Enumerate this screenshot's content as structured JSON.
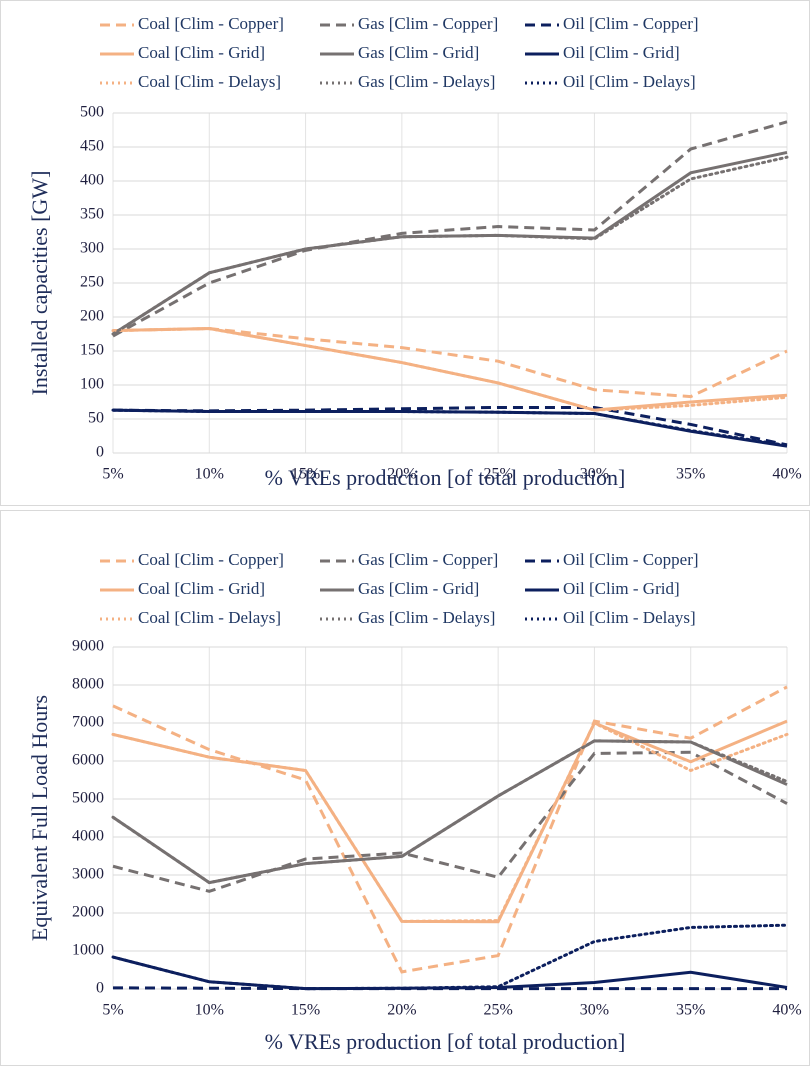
{
  "chart_data": [
    {
      "type": "line",
      "x_label": "% VREs production [of total production]",
      "y_label": "Installed capacities [GW]",
      "categories": [
        "5%",
        "10%",
        "15%",
        "20%",
        "25%",
        "30%",
        "35%",
        "40%"
      ],
      "ylim": [
        0,
        500
      ],
      "yticks": [
        0,
        50,
        100,
        150,
        200,
        250,
        300,
        350,
        400,
        450,
        500
      ],
      "grid": true,
      "series": [
        {
          "name": "Coal [Clim - Copper]",
          "color": "#f4b183",
          "style": "dashed",
          "values": [
            180,
            183,
            168,
            155,
            135,
            93,
            83,
            150
          ]
        },
        {
          "name": "Gas [Clim - Copper]",
          "color": "#767171",
          "style": "dashed",
          "values": [
            172,
            250,
            298,
            323,
            333,
            328,
            447,
            487
          ]
        },
        {
          "name": "Oil [Clim - Copper]",
          "color": "#0c1f5e",
          "style": "dashed",
          "values": [
            63,
            62,
            63,
            65,
            67,
            67,
            42,
            12
          ]
        },
        {
          "name": "Coal [Clim - Grid]",
          "color": "#f4b183",
          "style": "solid",
          "values": [
            180,
            183,
            158,
            133,
            103,
            63,
            75,
            85
          ]
        },
        {
          "name": "Gas [Clim - Grid]",
          "color": "#767171",
          "style": "solid",
          "values": [
            175,
            265,
            300,
            318,
            320,
            316,
            412,
            442
          ]
        },
        {
          "name": "Oil [Clim - Grid]",
          "color": "#0c1f5e",
          "style": "solid",
          "values": [
            63,
            61,
            61,
            61,
            60,
            58,
            32,
            10
          ]
        },
        {
          "name": "Coal [Clim - Delays]",
          "color": "#f4b183",
          "style": "dotted",
          "values": [
            180,
            183,
            158,
            133,
            103,
            63,
            70,
            82
          ]
        },
        {
          "name": "Gas [Clim - Delays]",
          "color": "#767171",
          "style": "dotted",
          "values": [
            175,
            265,
            300,
            318,
            320,
            315,
            403,
            435
          ]
        },
        {
          "name": "Oil [Clim - Delays]",
          "color": "#0c1f5e",
          "style": "dotted",
          "values": [
            63,
            61,
            61,
            61,
            60,
            58,
            33,
            11
          ]
        }
      ]
    },
    {
      "type": "line",
      "x_label": "% VREs production [of total production]",
      "y_label": "Equivalent Full Load Hours",
      "categories": [
        "5%",
        "10%",
        "15%",
        "20%",
        "25%",
        "30%",
        "35%",
        "40%"
      ],
      "ylim": [
        0,
        9000
      ],
      "yticks": [
        0,
        1000,
        2000,
        3000,
        4000,
        5000,
        6000,
        7000,
        8000,
        9000
      ],
      "grid": true,
      "series": [
        {
          "name": "Coal [Clim - Copper]",
          "color": "#f4b183",
          "style": "dashed",
          "values": [
            7450,
            6300,
            5500,
            450,
            880,
            7050,
            6600,
            7950
          ]
        },
        {
          "name": "Gas [Clim - Copper]",
          "color": "#767171",
          "style": "dashed",
          "values": [
            3230,
            2570,
            3420,
            3580,
            2940,
            6200,
            6230,
            4880
          ]
        },
        {
          "name": "Oil [Clim - Copper]",
          "color": "#0c1f5e",
          "style": "dashed",
          "values": [
            30,
            20,
            10,
            10,
            10,
            10,
            10,
            10
          ]
        },
        {
          "name": "Coal [Clim - Grid]",
          "color": "#f4b183",
          "style": "solid",
          "values": [
            6700,
            6100,
            5750,
            1780,
            1770,
            7000,
            5980,
            7050
          ]
        },
        {
          "name": "Gas [Clim - Grid]",
          "color": "#767171",
          "style": "solid",
          "values": [
            4520,
            2800,
            3300,
            3490,
            5080,
            6530,
            6500,
            5380
          ]
        },
        {
          "name": "Oil [Clim - Grid]",
          "color": "#0c1f5e",
          "style": "solid",
          "values": [
            840,
            190,
            10,
            20,
            40,
            170,
            440,
            40
          ]
        },
        {
          "name": "Coal [Clim - Delays]",
          "color": "#f4b183",
          "style": "dotted",
          "values": [
            6700,
            6100,
            5750,
            1780,
            1800,
            7000,
            5750,
            6700
          ]
        },
        {
          "name": "Gas [Clim - Delays]",
          "color": "#767171",
          "style": "dotted",
          "values": [
            4520,
            2800,
            3300,
            3490,
            5080,
            6530,
            6500,
            5460
          ]
        },
        {
          "name": "Oil [Clim - Delays]",
          "color": "#0c1f5e",
          "style": "dotted",
          "values": [
            840,
            190,
            10,
            20,
            60,
            1250,
            1620,
            1680
          ]
        }
      ]
    }
  ]
}
